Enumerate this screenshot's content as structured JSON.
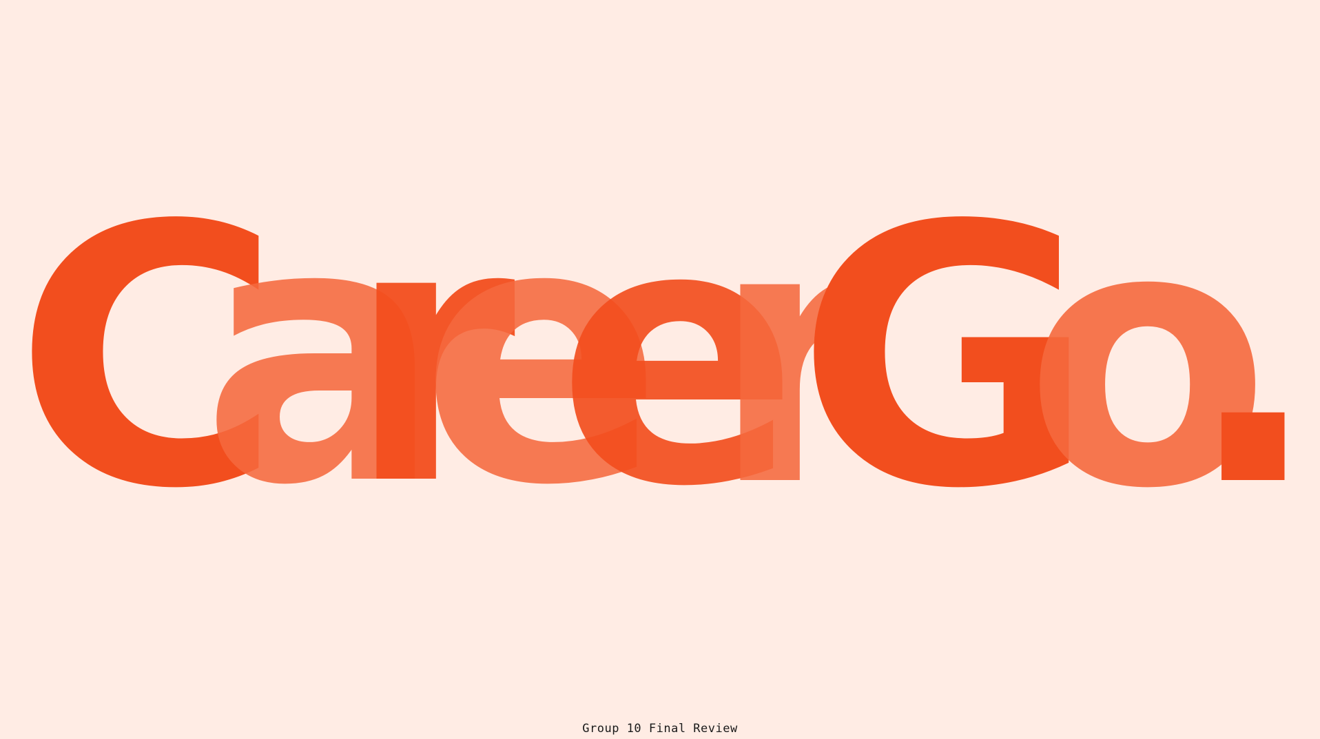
{
  "logo": {
    "letters": [
      "C",
      "a",
      "r",
      "e",
      "e",
      "r",
      "G",
      "o",
      "."
    ],
    "primary_color": "#F24E1E",
    "secondary_color": "#F5693D",
    "overlap_color": "#F0400F"
  },
  "caption": "Group 10 Final Review",
  "background_color": "#FFECE4"
}
